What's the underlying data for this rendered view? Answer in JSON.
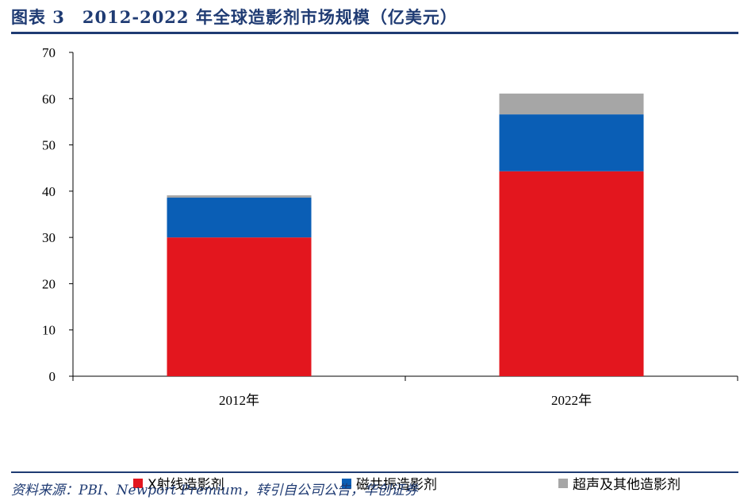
{
  "header": {
    "title": "图表 3　2012-2022 年全球造影剂市场规模（亿美元）"
  },
  "footer": {
    "source": "资料来源：PBI、Newport Premium，转引自公司公告，华创证券"
  },
  "chart_data": {
    "type": "bar",
    "stacked": true,
    "categories": [
      "2012年",
      "2022年"
    ],
    "series": [
      {
        "name": "X射线造影剂",
        "values": [
          30,
          44.3
        ],
        "color": "#e3161e"
      },
      {
        "name": "磁共振造影剂",
        "values": [
          8.6,
          12.3
        ],
        "color": "#0a5eb5"
      },
      {
        "name": "超声及其他造影剂",
        "values": [
          0.5,
          4.5
        ],
        "color": "#a6a6a6"
      }
    ],
    "yticks": [
      "0",
      "10",
      "20",
      "30",
      "40",
      "50",
      "60",
      "70"
    ],
    "ylim": [
      0,
      70
    ],
    "grid": false,
    "legend_position": "bottom"
  }
}
